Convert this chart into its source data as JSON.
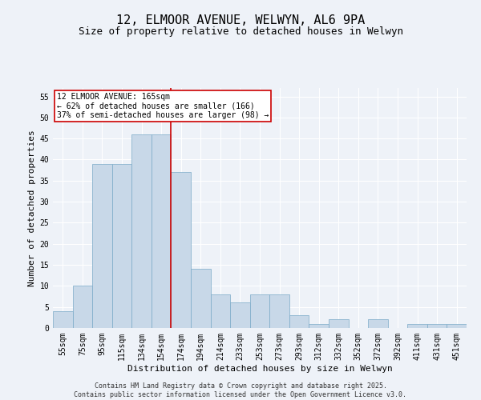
{
  "title_line1": "12, ELMOOR AVENUE, WELWYN, AL6 9PA",
  "title_line2": "Size of property relative to detached houses in Welwyn",
  "xlabel": "Distribution of detached houses by size in Welwyn",
  "ylabel": "Number of detached properties",
  "bar_color": "#c8d8e8",
  "bar_edge_color": "#7aaac8",
  "bar_width": 1.0,
  "categories": [
    "55sqm",
    "75sqm",
    "95sqm",
    "115sqm",
    "134sqm",
    "154sqm",
    "174sqm",
    "194sqm",
    "214sqm",
    "233sqm",
    "253sqm",
    "273sqm",
    "293sqm",
    "312sqm",
    "332sqm",
    "352sqm",
    "372sqm",
    "392sqm",
    "411sqm",
    "431sqm",
    "451sqm"
  ],
  "values": [
    4,
    10,
    39,
    39,
    46,
    46,
    37,
    14,
    8,
    6,
    8,
    8,
    3,
    1,
    2,
    0,
    2,
    0,
    1,
    1,
    1
  ],
  "ylim": [
    0,
    57
  ],
  "yticks": [
    0,
    5,
    10,
    15,
    20,
    25,
    30,
    35,
    40,
    45,
    50,
    55
  ],
  "vline_x": 5.5,
  "vline_color": "#cc0000",
  "annotation_title": "12 ELMOOR AVENUE: 165sqm",
  "annotation_line2": "← 62% of detached houses are smaller (166)",
  "annotation_line3": "37% of semi-detached houses are larger (98) →",
  "annotation_box_color": "#cc0000",
  "annotation_fill": "#ffffff",
  "background_color": "#eef2f8",
  "grid_color": "#ffffff",
  "footer_line1": "Contains HM Land Registry data © Crown copyright and database right 2025.",
  "footer_line2": "Contains public sector information licensed under the Open Government Licence v3.0.",
  "title_fontsize": 11,
  "subtitle_fontsize": 9,
  "axis_label_fontsize": 8,
  "tick_fontsize": 7,
  "annotation_fontsize": 7,
  "footer_fontsize": 6
}
